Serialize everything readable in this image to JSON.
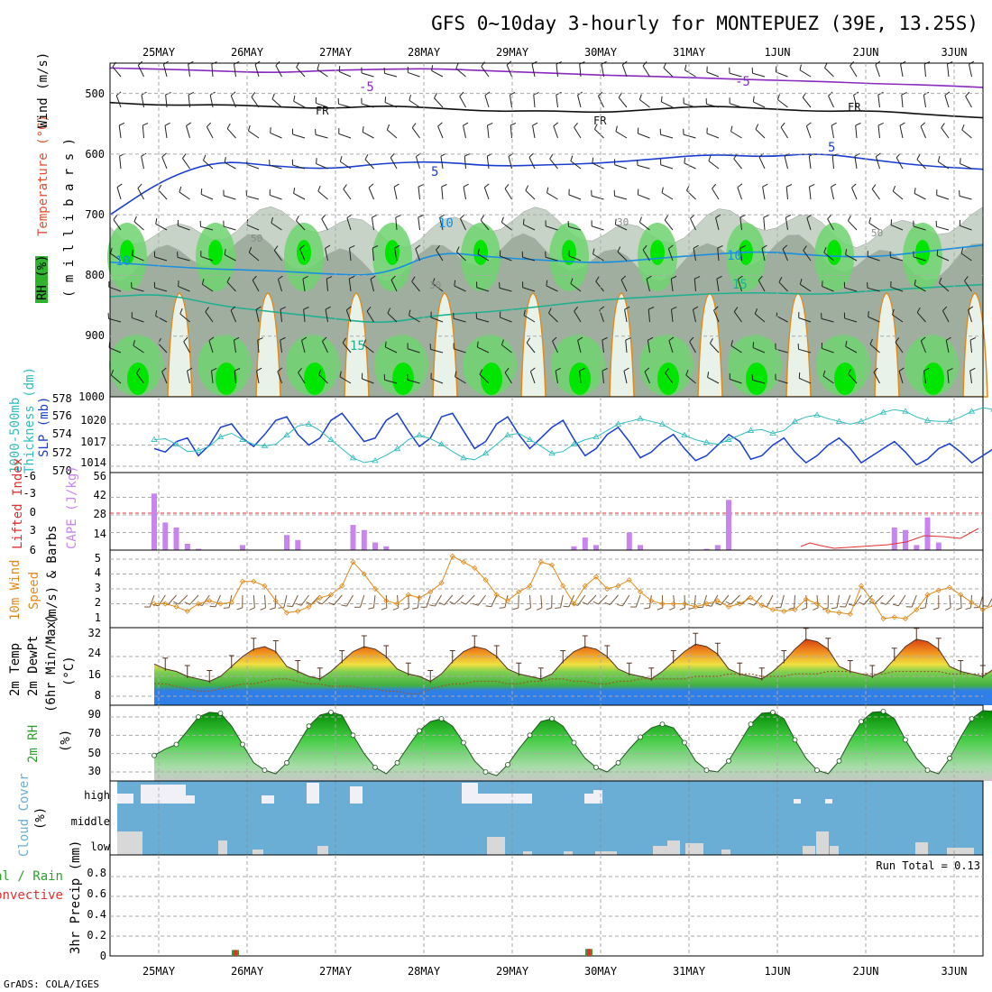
{
  "title": "GFS 0~10day 3-hourly for MONTEPUEZ (39E, 13.25S)",
  "footer": "GrADS: COLA/IGES",
  "run_total_label": "Run Total = 0.13",
  "colors": {
    "rh_dark": "#9fae9f",
    "rh_mid": "#c6d3c6",
    "rh_light": "#e8f2e8",
    "rh_green": "#6fd36f",
    "rh_bright": "#00e600",
    "slp": "#1a3fd0",
    "thickness": "#2fbcbc",
    "cape": "#c884f0",
    "lifted": "#e03030",
    "wind10": "#e08a18",
    "barb": "#7a5a3a",
    "temp_blue": "#2f7fe6",
    "temp_green": "#43b043",
    "temp_yellow": "#f0e040",
    "temp_orange": "#f09020",
    "temp_red": "#d84010",
    "dewpt": "#9a5a2a",
    "rh2_dark": "#009900",
    "rh2_light": "#66dd66",
    "cloud_bg": "#6aaed6",
    "cloud_cell": "#f2f0f7"
  },
  "chart_data": [
    {
      "type": "contour",
      "name": "vertical-profile",
      "ylabel": "m i l l i b a r s",
      "legend_labels": [
        "Wind (m/s)",
        "Temperature (°C)",
        "RH (%)"
      ],
      "yticks": [
        500,
        600,
        700,
        800,
        900
      ],
      "ylim": [
        1000,
        450
      ],
      "contour_labels": [
        "-5",
        "FR",
        "5",
        "10",
        "15",
        "30",
        "50"
      ],
      "temperature_lines": [
        {
          "label": "-5",
          "color": "#8a2bbf",
          "p": [
            458,
            460,
            463,
            466,
            462,
            460,
            459,
            463,
            466,
            470,
            472,
            475,
            478,
            480,
            484,
            486,
            490
          ]
        },
        {
          "label": "FR",
          "color": "#111111",
          "p": [
            515,
            520,
            518,
            522,
            525,
            520,
            524,
            530,
            528,
            532,
            526,
            520,
            525,
            530,
            528,
            535,
            540
          ]
        },
        {
          "label": "5",
          "color": "#1a3fd0",
          "p": [
            700,
            640,
            610,
            620,
            625,
            615,
            612,
            620,
            618,
            615,
            608,
            600,
            605,
            598,
            610,
            620,
            625
          ]
        },
        {
          "label": "10",
          "color": "#1a8fe0",
          "p": [
            778,
            785,
            790,
            792,
            798,
            800,
            760,
            770,
            775,
            780,
            772,
            765,
            760,
            768,
            770,
            760,
            750
          ]
        },
        {
          "label": "15",
          "color": "#20b090",
          "p": [
            835,
            830,
            850,
            860,
            870,
            880,
            865,
            860,
            850,
            840,
            835,
            830,
            828,
            832,
            825,
            820,
            815
          ]
        }
      ]
    },
    {
      "type": "line",
      "name": "slp-thickness",
      "ylabel_left": "1000-500mb Thickness (dm)",
      "ylabel_right": "SLP (mb)",
      "yticks_left": [
        570,
        572,
        574,
        576,
        578
      ],
      "yticks_right": [
        1014,
        1017,
        1020
      ],
      "series": [
        {
          "name": "SLP (mb)",
          "unit": "mb",
          "values": [
            1016.5,
            1016,
            1017.5,
            1018,
            1015.5,
            1017,
            1019.5,
            1020,
            1018,
            1016.8,
            1018.5,
            1020.5,
            1021,
            1018.5,
            1017,
            1018,
            1020.5,
            1021.5,
            1019.5,
            1017.5,
            1018,
            1020.5,
            1021.5,
            1019,
            1016.8,
            1018,
            1021,
            1021.5,
            1019,
            1016.5,
            1017.5,
            1020,
            1021,
            1018.5,
            1016.5,
            1018,
            1019.5,
            1020.5,
            1017.8,
            1015.5,
            1016.5,
            1018.5,
            1019.5,
            1017.5,
            1015.2,
            1016,
            1017.5,
            1018.5,
            1016.5,
            1014.8,
            1015.5,
            1017,
            1018.5,
            1017.5,
            1015,
            1015.5,
            1017,
            1018,
            1016,
            1014.5,
            1015.5,
            1017,
            1018,
            1016.5,
            1014.5,
            1015.5,
            1016.5,
            1017.5,
            1016,
            1014.2,
            1015,
            1016.5,
            1017.2,
            1016,
            1014.5,
            1015.5,
            1016.5,
            1017.5
          ]
        },
        {
          "name": "1000-500mb Thickness (dm)",
          "unit": "dm",
          "values": [
            573.5,
            573.6,
            573,
            572.2,
            572.3,
            572.8,
            573.8,
            574.2,
            573.5,
            573,
            572.8,
            573,
            574,
            575,
            575.2,
            574.5,
            573.5,
            572.5,
            571.5,
            571,
            571.2,
            571.8,
            572.5,
            573.5,
            574,
            573.6,
            573,
            572.2,
            571.5,
            571.3,
            572,
            573,
            574,
            574.2,
            573.5,
            572.8,
            572,
            572.2,
            573,
            573.5,
            573.8,
            574.5,
            575.2,
            575.5,
            575.8,
            575.5,
            575.2,
            574.5,
            574,
            573.5,
            573.2,
            573,
            573.5,
            574,
            574.5,
            574.6,
            574.2,
            574.5,
            575.5,
            576,
            576.2,
            575.8,
            575.5,
            575.2,
            575.5,
            576,
            576.5,
            576.8,
            576.6,
            576,
            575.6,
            575.5,
            575.5,
            576,
            576.6,
            577,
            576.8,
            576.2
          ]
        }
      ]
    },
    {
      "type": "bar",
      "name": "cape-lifted-index",
      "ylabel_left": "Lifted Index",
      "ylabel_right": "CAPE (J/kg)",
      "yticks_left": [
        6,
        3,
        0,
        -3,
        -6
      ],
      "yticks_right": [
        14,
        28,
        42,
        56
      ],
      "series": [
        {
          "name": "CAPE (J/kg)",
          "values": [
            45,
            22,
            18,
            5,
            1,
            0,
            0,
            0,
            4,
            0,
            0,
            0,
            12,
            8,
            0,
            0,
            0,
            0,
            20,
            16,
            6,
            3,
            0,
            0,
            0,
            0,
            0,
            0,
            0,
            0,
            0,
            0,
            0,
            0,
            0,
            0,
            0,
            0,
            3,
            10,
            4,
            0,
            0,
            14,
            4,
            0,
            0,
            0,
            0,
            0,
            1,
            4,
            40,
            0,
            0,
            0,
            0,
            0,
            0,
            0,
            0,
            0,
            0,
            0,
            0,
            0,
            0,
            18,
            16,
            4,
            26,
            6,
            0,
            0,
            0,
            0,
            0,
            0
          ]
        },
        {
          "name": "Lifted Index",
          "values": []
        }
      ]
    },
    {
      "type": "line",
      "name": "wind10m",
      "ylabel": "10m Wind Speed (m/s) & Barbs",
      "yticks": [
        1,
        2,
        3,
        4,
        5
      ],
      "series": [
        {
          "name": "10m Wind Speed (m/s)",
          "values": [
            2,
            2,
            1.8,
            1.5,
            2,
            2.2,
            2,
            2.1,
            3.5,
            3.5,
            3.2,
            2.2,
            1.4,
            1.5,
            1.8,
            2.4,
            2.6,
            3.2,
            4.8,
            4,
            3,
            2.2,
            2,
            2.6,
            2.4,
            2.8,
            3.4,
            5.2,
            4.8,
            4.4,
            3.6,
            2.6,
            2.2,
            2.8,
            3.2,
            4.8,
            4.6,
            3.2,
            2,
            3.2,
            3.8,
            3,
            3.2,
            3.6,
            2.8,
            2.2,
            2,
            2,
            2,
            1.8,
            2,
            2.2,
            1.8,
            2,
            2.4,
            1.9,
            1.6,
            1.5,
            1.6,
            2.3,
            2,
            1.5,
            1.4,
            1.3,
            3.2,
            2.2,
            1,
            1.1,
            1,
            1.6,
            2.6,
            2.9,
            3.1,
            2.6,
            2.1,
            1.6,
            1.9,
            2.3
          ]
        }
      ]
    },
    {
      "type": "area",
      "name": "temperature",
      "ylabel": "2m Temp 2m DewPt (6hr Min/Max) (°C)",
      "yticks": [
        8,
        16,
        24,
        32
      ],
      "series": [
        {
          "name": "2m Temp",
          "values": [
            21,
            19,
            18,
            16,
            15,
            14,
            16,
            20,
            24,
            27,
            28,
            26,
            20,
            18,
            16,
            15,
            18,
            22,
            26,
            28,
            27,
            24,
            19,
            17,
            16,
            14,
            17,
            22,
            26,
            28,
            27,
            24,
            19,
            17,
            16,
            15,
            17,
            22,
            26,
            28,
            27,
            24,
            19,
            17,
            16,
            15,
            18,
            22,
            26,
            29,
            28,
            25,
            19,
            17,
            16,
            15,
            18,
            22,
            27,
            31,
            30,
            27,
            20,
            18,
            17,
            16,
            18,
            23,
            28,
            31,
            30,
            27,
            20,
            18,
            17,
            16,
            19,
            24
          ]
        },
        {
          "name": "2m DewPt",
          "values": [
            13,
            13,
            12,
            11,
            10,
            10,
            11,
            12,
            13,
            13,
            14,
            15,
            15,
            14,
            13,
            13,
            12,
            12,
            12,
            11,
            11,
            10,
            10,
            9,
            9,
            11,
            12,
            13,
            13,
            14,
            14,
            14,
            13,
            13,
            14,
            14,
            15,
            15,
            14,
            14,
            13,
            13,
            14,
            14,
            15,
            15,
            15,
            15,
            15,
            16,
            16,
            16,
            17,
            17,
            17,
            16,
            16,
            16,
            17,
            17,
            17,
            18,
            18,
            18,
            17,
            17,
            17,
            18,
            18,
            18,
            18,
            18,
            17,
            17,
            17,
            17,
            18,
            18
          ]
        }
      ]
    },
    {
      "type": "area",
      "name": "rh2m",
      "ylabel": "2m RH (%)",
      "yticks": [
        30,
        50,
        70,
        90
      ],
      "series": [
        {
          "name": "2m RH",
          "values": [
            48,
            55,
            60,
            75,
            90,
            95,
            94,
            80,
            60,
            40,
            32,
            28,
            40,
            60,
            80,
            92,
            95,
            92,
            70,
            50,
            35,
            28,
            40,
            58,
            75,
            85,
            88,
            80,
            62,
            42,
            30,
            26,
            38,
            55,
            70,
            85,
            88,
            80,
            62,
            45,
            35,
            30,
            40,
            55,
            68,
            78,
            82,
            78,
            62,
            42,
            32,
            30,
            42,
            62,
            82,
            94,
            95,
            88,
            65,
            45,
            32,
            28,
            42,
            65,
            85,
            95,
            96,
            88,
            65,
            45,
            32,
            28,
            45,
            68,
            88,
            97,
            96,
            86
          ]
        }
      ]
    },
    {
      "type": "heatmap",
      "name": "cloud-cover",
      "ylabel": "Cloud Cover (%)",
      "rows": [
        "high",
        "middle",
        "low"
      ]
    },
    {
      "type": "bar",
      "name": "precip",
      "ylabel": "3hr Precip (mm)",
      "legend_labels": [
        "Total / Rain",
        "Convective"
      ],
      "yticks": [
        0,
        0.2,
        0.4,
        0.6,
        0.8
      ],
      "ylim": [
        0,
        0.95
      ],
      "series": [
        {
          "name": "3hr Precip",
          "values": [
            0.06,
            0.07
          ]
        }
      ]
    }
  ],
  "x_axis": {
    "dates": [
      "25MAY",
      "26MAY",
      "27MAY",
      "28MAY",
      "29MAY",
      "30MAY",
      "31MAY",
      "1JUN",
      "2JUN",
      "3JUN"
    ]
  },
  "tick_labels": {
    "profile": [
      "500",
      "600",
      "700",
      "800",
      "900",
      "1000"
    ],
    "thickness": [
      "570",
      "572",
      "574",
      "576",
      "578"
    ],
    "slp": [
      "1014",
      "1017",
      "1020"
    ],
    "lifted": [
      "6",
      "3",
      "0",
      "-3",
      "-6"
    ],
    "cape": [
      "14",
      "28",
      "42",
      "56"
    ],
    "wind": [
      "1",
      "2",
      "3",
      "4",
      "5"
    ],
    "temp": [
      "8",
      "16",
      "24",
      "32"
    ],
    "rh2": [
      "30",
      "50",
      "70",
      "90"
    ],
    "cloud": [
      "high",
      "middle",
      "low"
    ],
    "precip": [
      "0",
      "0.2",
      "0.4",
      "0.6",
      "0.8"
    ]
  },
  "panel_labels": {
    "wind_ms": "Wind (m/s)",
    "temp_c": "Temperature (°C)",
    "rh_pct": "RH (%)",
    "millibars": "( m i l l i b a r s )",
    "thick_a": "1000-500mb",
    "thick_b": "Thickness (dm)",
    "slp": "SLP (mb)",
    "lifted": "Lifted Index",
    "cape": "CAPE (J/kg)",
    "wind10_a": "10m Wind",
    "wind10_b": "Speed",
    "wind10_c": "(m/s) & Barbs",
    "temp_a": "2m Temp",
    "temp_b": "2m DewPt",
    "temp_c2": "(6hr Min/Max)",
    "temp_unit": "(°C)",
    "rh2": "2m RH",
    "rh2_unit": "(%)",
    "cloud": "Cloud Cover",
    "cloud_unit": "(%)",
    "precip_a": "Total / Rain",
    "precip_b": "Convective",
    "precip_c": "3hr Precip (mm)"
  }
}
